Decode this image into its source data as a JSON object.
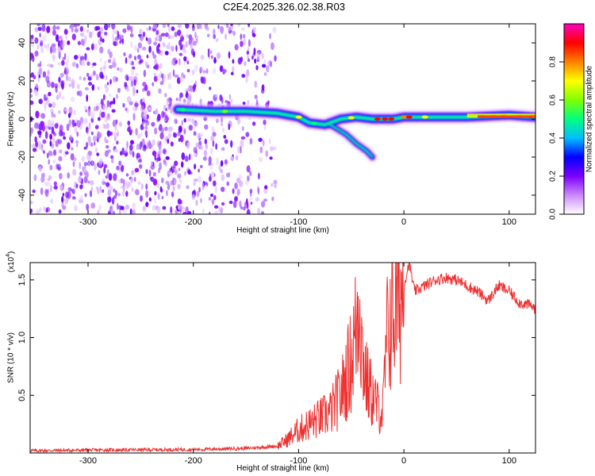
{
  "title": "C2E4.2025.326.02.38.R03",
  "chart_data": [
    {
      "type": "heatmap",
      "xlabel": "Height of straight line (km)",
      "ylabel": "Frequency (Hz)",
      "xlim": [
        -355,
        125
      ],
      "ylim": [
        -50,
        50
      ],
      "xticks": [
        -300,
        -200,
        -100,
        0,
        100
      ],
      "yticks": [
        -40,
        -20,
        0,
        20,
        40
      ],
      "colorbar": {
        "label": "Normalized spectral amplitude",
        "ticks": [
          0.0,
          0.2,
          0.4,
          0.6,
          0.8
        ],
        "range": [
          0,
          1
        ],
        "colormap": [
          "#ffffff",
          "#cc88ff",
          "#7b00ff",
          "#0000ff",
          "#00bfff",
          "#00ff80",
          "#80ff00",
          "#ffff00",
          "#ff8000",
          "#ff0000",
          "#ff00c0"
        ]
      },
      "noise_region_x": [
        -355,
        -122
      ],
      "ridge_main": [
        [
          -215,
          5
        ],
        [
          -180,
          4
        ],
        [
          -150,
          4
        ],
        [
          -120,
          3
        ],
        [
          -100,
          1
        ],
        [
          -90,
          -2
        ],
        [
          -75,
          -3
        ],
        [
          -60,
          0
        ],
        [
          -45,
          1
        ],
        [
          -30,
          0
        ],
        [
          -10,
          0
        ],
        [
          0,
          1
        ],
        [
          20,
          1
        ],
        [
          60,
          1
        ],
        [
          100,
          2
        ],
        [
          125,
          1
        ]
      ],
      "ridge_branch": [
        [
          -70,
          -3
        ],
        [
          -55,
          -8
        ],
        [
          -45,
          -13
        ],
        [
          -35,
          -17
        ],
        [
          -30,
          -20
        ]
      ]
    },
    {
      "type": "line",
      "xlabel": "Height of straight line (km)",
      "ylabel": "SNR (10 * v/v)",
      "y_multiplier": "(x10",
      "y_multiplier_exp": "4",
      "y_multiplier_close": ")",
      "xlim": [
        -355,
        125
      ],
      "ylim": [
        0,
        16500
      ],
      "xticks": [
        -300,
        -200,
        -100,
        0,
        100
      ],
      "yticks": [
        5000,
        10000,
        15000
      ],
      "ytick_labels": [
        "0.5",
        "1.0",
        "1.5"
      ],
      "series": [
        {
          "color": "#ee3030",
          "x": [
            -355,
            -300,
            -200,
            -150,
            -120,
            -110,
            -100,
            -90,
            -80,
            -70,
            -60,
            -50,
            -45,
            -42,
            -40,
            -35,
            -30,
            -25,
            -20,
            -18,
            -15,
            -10,
            -5,
            0,
            5,
            10,
            20,
            30,
            40,
            50,
            60,
            70,
            80,
            90,
            100,
            110,
            120,
            125
          ],
          "y": [
            200,
            250,
            300,
            400,
            600,
            1200,
            2000,
            2500,
            3000,
            3500,
            5000,
            8000,
            11000,
            15000,
            9000,
            6000,
            5000,
            4000,
            3500,
            7000,
            11000,
            12500,
            13500,
            14500,
            16500,
            14000,
            14500,
            15000,
            15200,
            15000,
            14500,
            14000,
            13200,
            14500,
            14000,
            13000,
            12800,
            12500
          ]
        }
      ]
    }
  ]
}
